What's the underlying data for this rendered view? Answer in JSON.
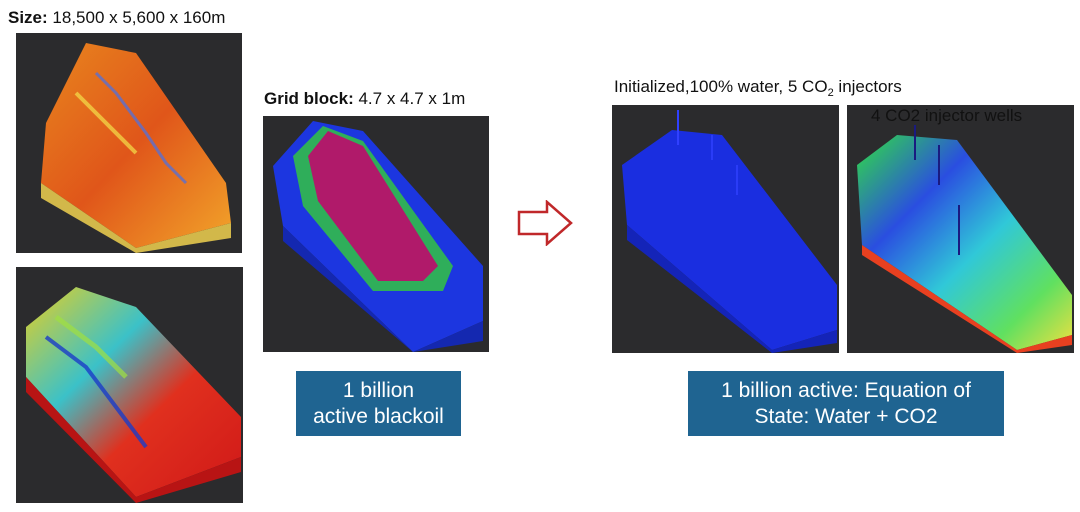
{
  "size_caption": {
    "label": "Size:",
    "value": " 18,500 x 5,600 x 160m"
  },
  "grid_caption": {
    "label": "Grid block:",
    "value": " 4.7 x 4.7 x 1m"
  },
  "init_caption": {
    "prefix": "Initialized,100% water, 5 CO",
    "subscript": "2",
    "suffix": " injectors"
  },
  "wells_caption": "4 CO2 injector wells",
  "box_blackoil": {
    "line1": "1 billion",
    "line2": "active blackoil"
  },
  "box_eos": {
    "line1": "1 billion active: Equation of",
    "line2": "State: Water + CO2"
  },
  "arrow": {
    "icon": "right-arrow-outline-icon",
    "color": "#c0282a"
  },
  "colors": {
    "label_box_bg": "#1f6491",
    "panel_bg": "#2b2b2d"
  }
}
